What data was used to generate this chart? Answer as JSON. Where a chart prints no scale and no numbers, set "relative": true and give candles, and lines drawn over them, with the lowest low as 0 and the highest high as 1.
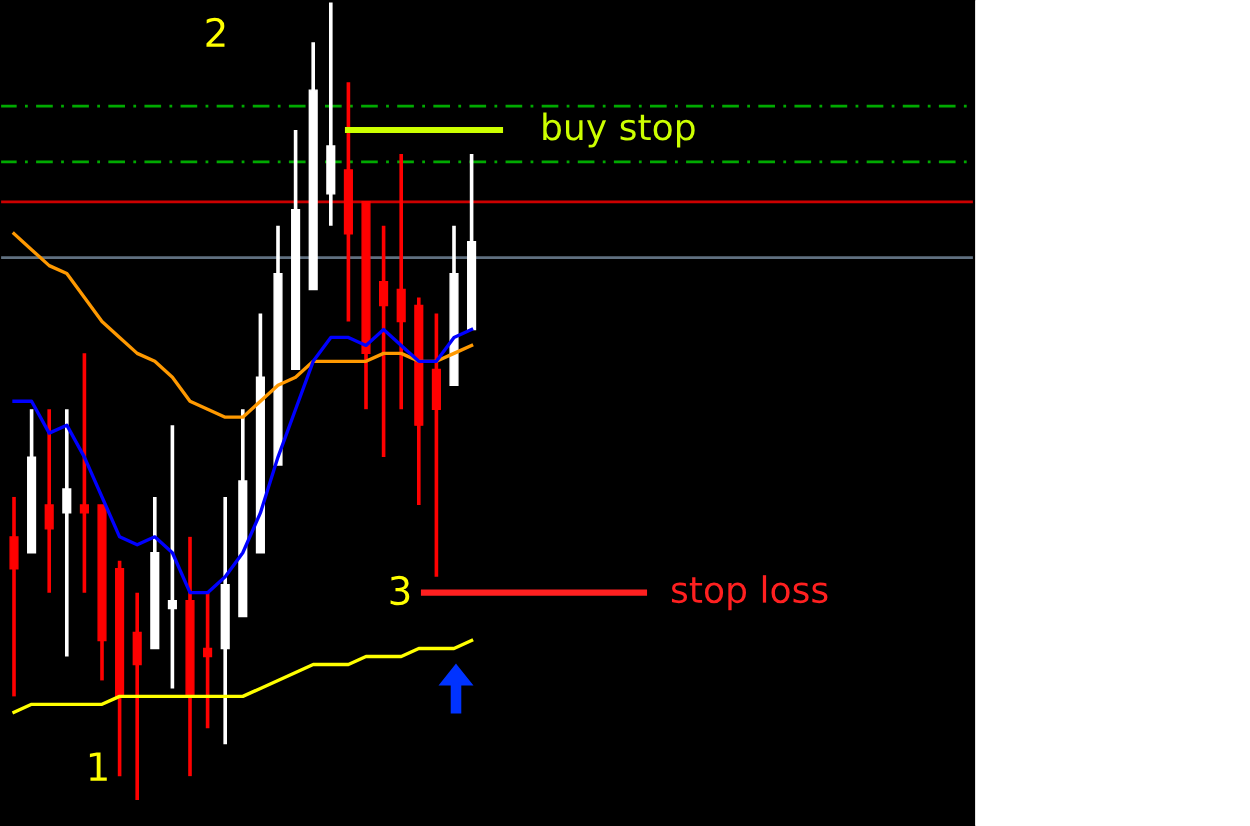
{
  "chart_data": {
    "type": "candlestick",
    "relative": true,
    "legend": false,
    "grid": false,
    "categories": [
      null,
      null,
      null,
      null,
      null,
      null,
      null,
      null,
      null,
      null,
      null,
      null,
      null,
      null,
      null,
      null,
      null,
      null,
      null,
      null,
      null,
      null,
      null,
      null,
      null,
      null,
      null
    ],
    "ohlc": [
      [
        0.33,
        0.38,
        0.13,
        0.29
      ],
      [
        0.31,
        0.49,
        0.31,
        0.43
      ],
      [
        0.37,
        0.49,
        0.26,
        0.34
      ],
      [
        0.36,
        0.49,
        0.18,
        0.39
      ],
      [
        0.37,
        0.56,
        0.26,
        0.36
      ],
      [
        0.37,
        0.37,
        0.15,
        0.2
      ],
      [
        0.29,
        0.3,
        0.03,
        0.13
      ],
      [
        0.21,
        0.26,
        0,
        0.17
      ],
      [
        0.19,
        0.38,
        0.19,
        0.31
      ],
      [
        0.24,
        0.47,
        0.14,
        0.25
      ],
      [
        0.25,
        0.33,
        0.03,
        0.13
      ],
      [
        0.19,
        0.26,
        0.09,
        0.18
      ],
      [
        0.19,
        0.38,
        0.07,
        0.27
      ],
      [
        0.23,
        0.49,
        0.23,
        0.4
      ],
      [
        0.31,
        0.61,
        0.31,
        0.53
      ],
      [
        0.42,
        0.72,
        0.42,
        0.66
      ],
      [
        0.54,
        0.84,
        0.54,
        0.74
      ],
      [
        0.64,
        0.95,
        0.64,
        0.89
      ],
      [
        0.76,
        1,
        0.72,
        0.82
      ],
      [
        0.79,
        0.9,
        0.6,
        0.71
      ],
      [
        0.75,
        0.75,
        0.49,
        0.56
      ],
      [
        0.65,
        0.72,
        0.43,
        0.62
      ],
      [
        0.64,
        0.81,
        0.49,
        0.6
      ],
      [
        0.62,
        0.63,
        0.37,
        0.47
      ],
      [
        0.54,
        0.61,
        0.28,
        0.49
      ],
      [
        0.52,
        0.72,
        0.52,
        0.66
      ],
      [
        0.59,
        0.81,
        0.59,
        0.7
      ]
    ],
    "colors": [
      "#ff0000",
      "#ffffff",
      "#ff0000",
      "#ffffff",
      "#ff0000",
      "#ff0000",
      "#ff0000",
      "#ff0000",
      "#ffffff",
      "#ffffff",
      "#ff0000",
      "#ff0000",
      "#ffffff",
      "#ffffff",
      "#ffffff",
      "#ffffff",
      "#ffffff",
      "#ffffff",
      "#ffffff",
      "#ff0000",
      "#ff0000",
      "#ff0000",
      "#ff0000",
      "#ff0000",
      "#ff0000",
      "#ffffff",
      "#ffffff"
    ],
    "series": [
      {
        "type": "line",
        "color": "#ff9900",
        "values": [
          0.71,
          0.69,
          0.67,
          0.66,
          0.63,
          0.6,
          0.58,
          0.56,
          0.55,
          0.53,
          0.5,
          0.49,
          0.48,
          0.48,
          0.5,
          0.52,
          0.53,
          0.55,
          0.55,
          0.55,
          0.55,
          0.56,
          0.56,
          0.55,
          0.55,
          0.56,
          0.57
        ]
      },
      {
        "type": "line",
        "color": "#0000ff",
        "values": [
          0.5,
          0.5,
          0.46,
          0.47,
          0.43,
          0.38,
          0.33,
          0.32,
          0.33,
          0.31,
          0.26,
          0.26,
          0.28,
          0.31,
          0.36,
          0.43,
          0.49,
          0.55,
          0.58,
          0.58,
          0.57,
          0.59,
          0.57,
          0.55,
          0.55,
          0.58,
          0.59
        ]
      },
      {
        "type": "line",
        "color": "#ffff00",
        "values": [
          0.11,
          0.12,
          0.12,
          0.12,
          0.12,
          0.12,
          0.13,
          0.13,
          0.13,
          0.13,
          0.13,
          0.13,
          0.13,
          0.13,
          0.14,
          0.15,
          0.16,
          0.17,
          0.17,
          0.17,
          0.18,
          0.18,
          0.18,
          0.19,
          0.19,
          0.19,
          0.2
        ]
      }
    ],
    "ref_lines": [
      {
        "axis": "y",
        "value": 0.87,
        "color": "#00aa00",
        "line_style": "dashed"
      },
      {
        "axis": "y",
        "value": 0.8,
        "color": "#00aa00",
        "line_style": "dashed"
      },
      {
        "axis": "y",
        "value": 0.75,
        "color": "#cc0000",
        "line_style": "solid"
      },
      {
        "axis": "y",
        "value": 0.68,
        "color": "#607080",
        "line_style": "solid"
      },
      {
        "axis": "y",
        "value": 0.84,
        "color": "#ccff00",
        "line_style": "solid",
        "label": "buy stop"
      },
      {
        "axis": "y",
        "value": 0.26,
        "color": "#ff2020",
        "line_style": "solid",
        "label": "stop loss"
      }
    ],
    "annotations": [
      "1",
      "2",
      "3"
    ]
  }
}
